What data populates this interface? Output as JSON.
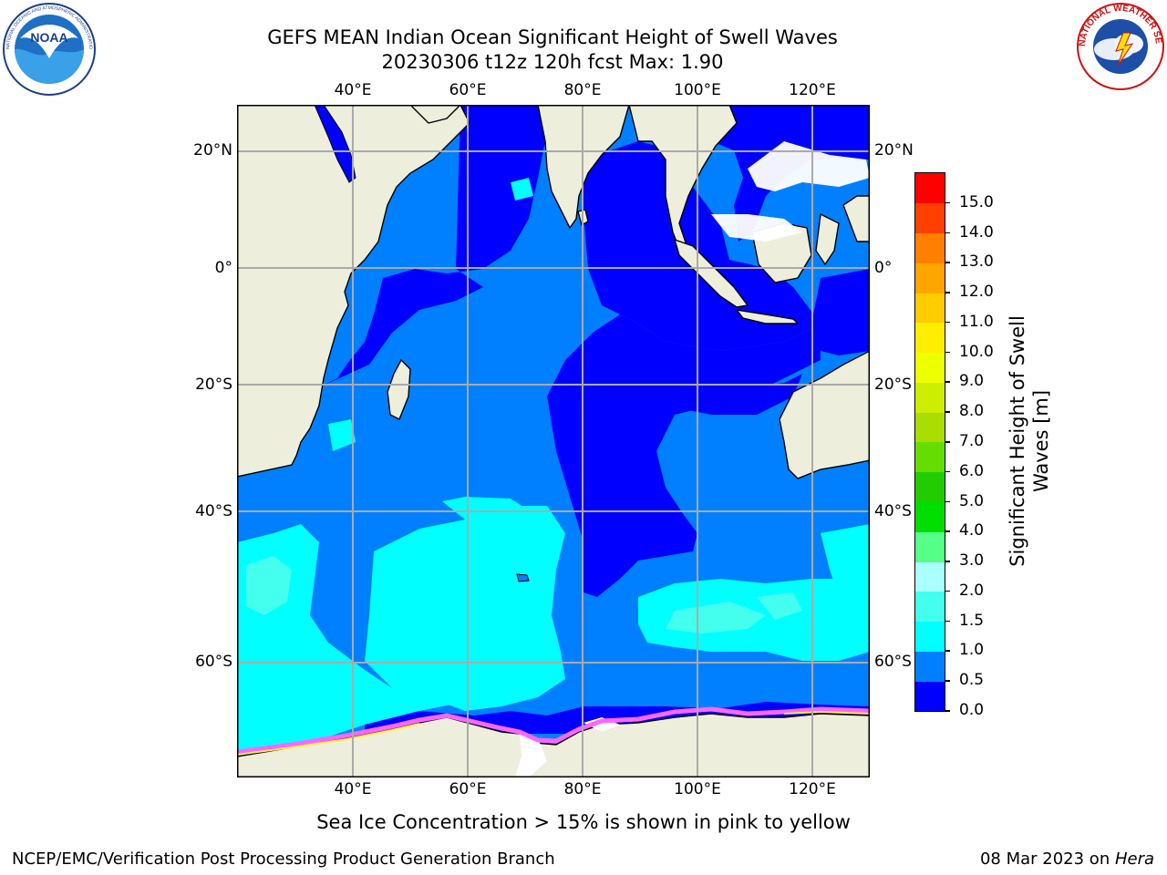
{
  "title": {
    "line1": "GEFS MEAN Indian Ocean Significant Height of Swell Waves",
    "line2": "20230306 t12z 120h fcst   Max: 1.90"
  },
  "logos": {
    "left": {
      "name": "NOAA",
      "text": "NOAA",
      "ring_text": "NATIONAL OCEANIC AND ATMOSPHERIC ADMINISTRATION · U.S. DEPARTMENT OF COMMERCE"
    },
    "right": {
      "name": "National Weather Service",
      "ring_text": "NATIONAL WEATHER SERVICE"
    }
  },
  "map": {
    "longitude_ticks": [
      "40°E",
      "60°E",
      "80°E",
      "100°E",
      "120°E"
    ],
    "latitude_ticks": [
      "20°N",
      "0°",
      "20°S",
      "40°S",
      "60°S"
    ],
    "colors": {
      "land": "#eeeedd",
      "ice_white": "#ffffff",
      "ice_pink": "#ff66ff",
      "ice_yellow": "#ffee44"
    }
  },
  "colorbar": {
    "label_line1": "Significant Height of Swell",
    "label_line2": "Waves [m]",
    "tick_labels": [
      "0.0",
      "0.5",
      "1.0",
      "1.5",
      "2.0",
      "3.0",
      "4.0",
      "5.0",
      "6.0",
      "7.0",
      "8.0",
      "9.0",
      "10.0",
      "11.0",
      "12.0",
      "13.0",
      "14.0",
      "15.0"
    ],
    "colors": [
      "#0000ff",
      "#0080ff",
      "#00ffff",
      "#44ffee",
      "#aaffff",
      "#55ff88",
      "#00dd00",
      "#22cc00",
      "#66dd00",
      "#aadd00",
      "#ccee00",
      "#eeff00",
      "#ffee00",
      "#ffcc00",
      "#ffa500",
      "#ff8000",
      "#ff4000",
      "#ff0000"
    ]
  },
  "caption": "Sea Ice Concentration > 15% is shown in pink to yellow",
  "footer": {
    "left": "NCEP/EMC/Verification Post Processing Product Generation Branch",
    "right_date": "08 Mar 2023 on ",
    "right_machine": "Hera"
  }
}
